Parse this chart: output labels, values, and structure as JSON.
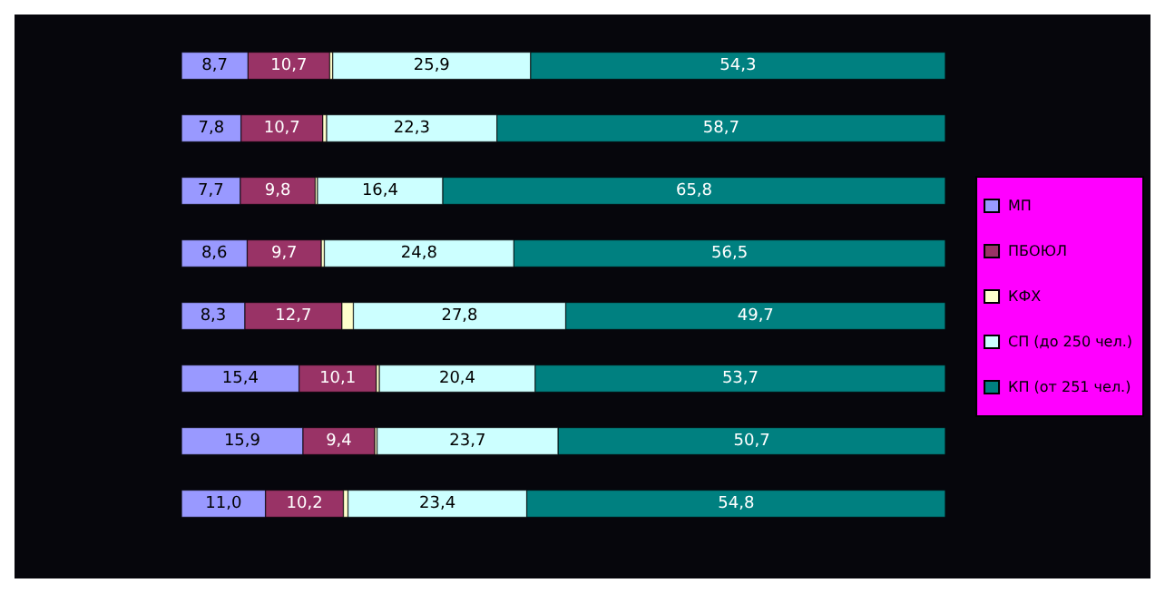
{
  "chart_data": {
    "type": "bar",
    "orientation": "horizontal",
    "stacked": true,
    "categories": [
      null,
      null,
      null,
      null,
      null,
      null,
      null,
      null
    ],
    "xlim": [
      0,
      100
    ],
    "tick_labels": false,
    "grid": false,
    "legend": "right",
    "series": [
      {
        "name": "МП",
        "color": "#9999ff",
        "values": [
          8.7,
          7.8,
          7.7,
          8.6,
          8.3,
          15.4,
          15.9,
          11.0
        ],
        "value_labels": [
          "8,7",
          "7,8",
          "7,7",
          "8,6",
          "8,3",
          "15,4",
          "15,9",
          "11,0"
        ]
      },
      {
        "name": "ПБОЮЛ",
        "color": "#993366",
        "values": [
          10.7,
          10.7,
          9.8,
          9.7,
          12.7,
          10.1,
          9.4,
          10.2
        ],
        "value_labels": [
          "10,7",
          "10,7",
          "9,8",
          "9,7",
          "12,7",
          "10,1",
          "9,4",
          "10,2"
        ]
      },
      {
        "name": "КФХ",
        "color": "#ffffcc",
        "values": [
          0.4,
          0.5,
          0.3,
          0.4,
          1.5,
          0.4,
          0.3,
          0.6
        ]
      },
      {
        "name": "СП (до 250 чел.)",
        "color": "#ccffff",
        "values": [
          25.9,
          22.3,
          16.4,
          24.8,
          27.8,
          20.4,
          23.7,
          23.4
        ],
        "value_labels": [
          "25,9",
          "22,3",
          "16,4",
          "24,8",
          "27,8",
          "20,4",
          "23,7",
          "23,4"
        ]
      },
      {
        "name": "КП (от 251 чел.)",
        "color": "#008080",
        "values": [
          54.3,
          58.7,
          65.8,
          56.5,
          49.7,
          53.7,
          50.7,
          54.8
        ],
        "value_labels": [
          "54,3",
          "58,7",
          "65,8",
          "56,5",
          "49,7",
          "53,7",
          "50,7",
          "54,8"
        ]
      }
    ]
  }
}
